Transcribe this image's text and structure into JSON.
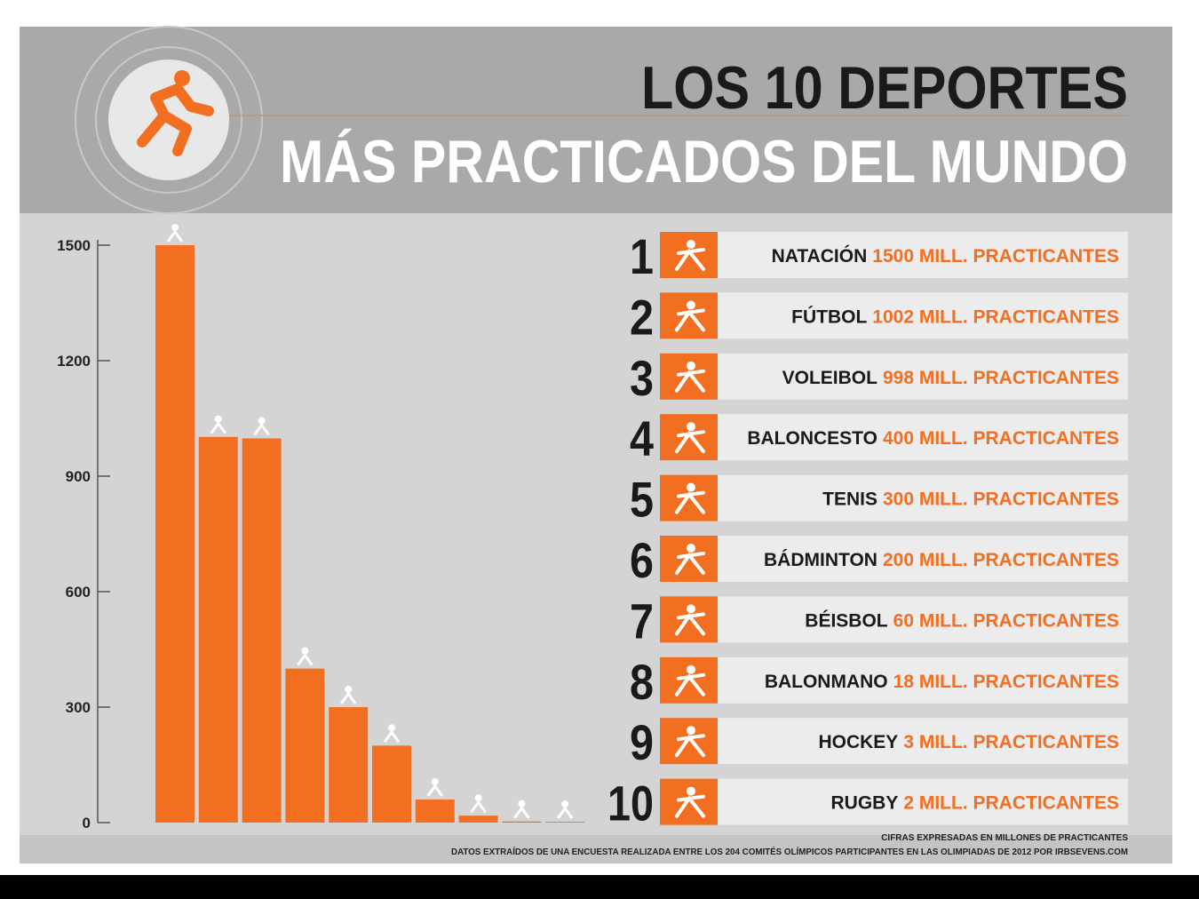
{
  "chart_data": {
    "type": "bar",
    "title": "LOS 10 DEPORTES",
    "subtitle": "MÁS PRACTICADOS DEL MUNDO",
    "categories": [
      "NATACIÓN",
      "FÚTBOL",
      "VOLEIBOL",
      "BALONCESTO",
      "TENIS",
      "BÁDMINTON",
      "BÉISBOL",
      "BALONMANO",
      "HOCKEY",
      "RUGBY"
    ],
    "ranks": [
      "1",
      "2",
      "3",
      "4",
      "5",
      "6",
      "7",
      "8",
      "9",
      "10"
    ],
    "values": [
      1500,
      1002,
      998,
      400,
      300,
      200,
      60,
      18,
      3,
      2
    ],
    "value_labels": [
      "1500 MILL. PRACTICANTES",
      "1002 MILL. PRACTICANTES",
      "998 MILL. PRACTICANTES",
      "400 MILL. PRACTICANTES",
      "300 MILL. PRACTICANTES",
      "200 MILL. PRACTICANTES",
      "60 MILL. PRACTICANTES",
      "18 MILL. PRACTICANTES",
      "3 MILL. PRACTICANTES",
      "2 MILL. PRACTICANTES"
    ],
    "color": "#f26f21",
    "ylim": [
      0,
      1500
    ],
    "yticks": [
      0,
      300,
      600,
      900,
      1200,
      1500
    ],
    "notes": [
      "CIFRAS EXPRESADAS EN MILLONES DE PRACTICANTES",
      "DATOS EXTRAÍDOS  DE UNA ENCUESTA REALIZADA ENTRE LOS 204 COMITÉS OLÍMPICOS PARTICIPANTES EN LAS OLIMPIADAS DE 2012 POR IRBSEVENS.COM"
    ]
  }
}
